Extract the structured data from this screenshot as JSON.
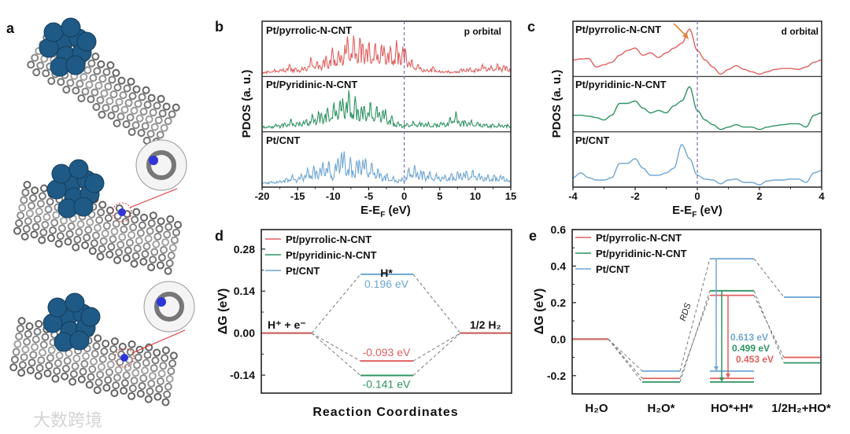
{
  "panels": {
    "a": "a",
    "b": "b",
    "c": "c",
    "d": "d",
    "e": "e"
  },
  "colors": {
    "pyrrolic": "#e0605e",
    "pyridinic": "#2f9462",
    "cnt": "#6ea6d2",
    "cluster": "#1f5a86",
    "tube": "#8a8a8a",
    "nitrogen": "#2f35d8"
  },
  "panel_a": {
    "structures": [
      "Pt/CNT",
      "Pt/pyridinic-N-CNT",
      "Pt/pyrrolic-N-CNT"
    ]
  },
  "watermark": "大数跨境",
  "chart_data": [
    {
      "id": "b",
      "type": "line",
      "title": "p orbital",
      "xlabel": {
        "main": "E-E",
        "sub": "F",
        "tail": " (eV)"
      },
      "ylabel": "PDOS (a. u.)",
      "xlim": [
        -20,
        15
      ],
      "xticks": [
        -20,
        -15,
        -10,
        -5,
        0,
        5,
        10,
        15
      ],
      "fermi_level": 0,
      "x": [
        -20,
        -19,
        -18,
        -17,
        -16,
        -15,
        -14,
        -13,
        -12,
        -11,
        -10,
        -9,
        -8,
        -7,
        -6,
        -5,
        -4,
        -3,
        -2,
        -1,
        0,
        1,
        2,
        3,
        4,
        5,
        6,
        7,
        8,
        9,
        10,
        11,
        12,
        13,
        14,
        15
      ],
      "series": [
        {
          "name": "Pt/pyrrolic-N-CNT",
          "color_key": "pyrrolic",
          "values": [
            0.02,
            0.05,
            0.08,
            0.1,
            0.2,
            0.1,
            0.15,
            0.35,
            0.25,
            0.4,
            0.55,
            0.5,
            0.85,
            0.8,
            0.85,
            0.7,
            0.65,
            0.7,
            0.6,
            0.7,
            0.65,
            0.3,
            0.2,
            0.08,
            0.15,
            0.05,
            0.05,
            0.03,
            0.1,
            0.12,
            0.1,
            0.2,
            0.15,
            0.2,
            0.2,
            0.12
          ]
        },
        {
          "name": "Pt/Pyridinic-N-CNT",
          "color_key": "pyridinic",
          "values": [
            0.05,
            0.05,
            0.1,
            0.12,
            0.2,
            0.15,
            0.2,
            0.3,
            0.4,
            0.45,
            0.55,
            0.7,
            0.85,
            0.7,
            0.55,
            0.6,
            0.5,
            0.5,
            0.3,
            0.15,
            0.1,
            0.15,
            0.15,
            0.15,
            0.1,
            0.15,
            0.15,
            0.4,
            0.2,
            0.2,
            0.15,
            0.12,
            0.1,
            0.1,
            0.1,
            0.08
          ]
        },
        {
          "name": "Pt/CNT",
          "color_key": "cnt",
          "values": [
            0.02,
            0.05,
            0.05,
            0.1,
            0.2,
            0.15,
            0.3,
            0.4,
            0.4,
            0.6,
            0.3,
            0.9,
            0.6,
            0.5,
            0.7,
            0.5,
            0.4,
            0.25,
            0.2,
            0.1,
            0.15,
            0.45,
            0.35,
            0.3,
            0.25,
            0.2,
            0.2,
            0.25,
            0.3,
            0.3,
            0.3,
            0.2,
            0.2,
            0.2,
            0.2,
            0.05
          ]
        }
      ]
    },
    {
      "id": "c",
      "type": "line",
      "title": "d orbital",
      "xlabel": {
        "main": "E-E",
        "sub": "F",
        "tail": " (eV)"
      },
      "ylabel": "PDOS (a. u.)",
      "xlim": [
        -4,
        4
      ],
      "xticks": [
        -4,
        -2,
        0,
        2,
        4
      ],
      "fermi_level": 0,
      "arrow_annotation_x": -0.25,
      "x": [
        -4,
        -3.75,
        -3.5,
        -3.25,
        -3,
        -2.75,
        -2.5,
        -2.25,
        -2,
        -1.75,
        -1.5,
        -1.25,
        -1,
        -0.75,
        -0.5,
        -0.25,
        0,
        0.25,
        0.5,
        0.75,
        1,
        1.25,
        1.5,
        1.75,
        2,
        2.25,
        2.5,
        2.75,
        3,
        3.25,
        3.5,
        3.75,
        4
      ],
      "series": [
        {
          "name": "Pt/pyrrolic-N-CNT",
          "color_key": "pyrrolic",
          "values": [
            0.3,
            0.32,
            0.33,
            0.15,
            0.2,
            0.25,
            0.4,
            0.5,
            0.55,
            0.4,
            0.45,
            0.35,
            0.45,
            0.55,
            0.65,
            0.95,
            0.5,
            0.3,
            0.15,
            0.0,
            0.1,
            0.18,
            0.1,
            0.05,
            0.0,
            0.05,
            0.1,
            0.12,
            0.12,
            0.1,
            0.15,
            0.25,
            0.3
          ]
        },
        {
          "name": "Pt/pyridinic-N-CNT",
          "color_key": "pyridinic",
          "values": [
            0.3,
            0.3,
            0.28,
            0.25,
            0.2,
            0.3,
            0.55,
            0.55,
            0.6,
            0.45,
            0.35,
            0.4,
            0.35,
            0.5,
            0.6,
            0.9,
            0.4,
            0.2,
            0.1,
            0.0,
            0.05,
            0.1,
            0.05,
            0.05,
            0.0,
            0.05,
            0.08,
            0.1,
            0.12,
            0.12,
            0.05,
            0.3,
            0.35
          ]
        },
        {
          "name": "Pt/CNT",
          "color_key": "cnt",
          "values": [
            0.15,
            0.25,
            0.15,
            0.1,
            0.1,
            0.15,
            0.45,
            0.45,
            0.55,
            0.35,
            0.2,
            0.2,
            0.25,
            0.35,
            0.85,
            0.55,
            0.2,
            0.12,
            0.1,
            0.02,
            0.1,
            0.12,
            0.05,
            0.05,
            0.0,
            0.08,
            0.1,
            0.1,
            0.12,
            0.12,
            0.05,
            0.25,
            0.3
          ]
        }
      ]
    },
    {
      "id": "d",
      "type": "line",
      "subtype": "energy-diagram",
      "xlabel": "Reaction Coordinates",
      "ylabel": "ΔG (eV)",
      "ylim": [
        -0.2,
        0.345
      ],
      "yticks": [
        0.28,
        0.14,
        0.0,
        -0.14
      ],
      "ytick_labels": [
        "0.28",
        "0.14",
        "0.00",
        "-0.14"
      ],
      "states": [
        "H⁺ + e⁻",
        "H*",
        "1/2 H₂"
      ],
      "series": [
        {
          "name": "Pt/pyrrolic-N-CNT",
          "color_key": "pyrrolic",
          "values": [
            0,
            -0.093,
            0
          ],
          "label": "-0.093 eV"
        },
        {
          "name": "Pt/pyridinic-N-CNT",
          "color_key": "pyridinic",
          "values": [
            0,
            -0.141,
            0
          ],
          "label": "-0.141 eV"
        },
        {
          "name": "Pt/CNT",
          "color_key": "cnt",
          "values": [
            0,
            0.196,
            0
          ],
          "label": "0.196 eV"
        }
      ],
      "legend": "top-left"
    },
    {
      "id": "e",
      "type": "line",
      "subtype": "energy-diagram",
      "xlabel": "",
      "ylabel": "ΔG (eV)",
      "ylim": [
        -0.3,
        0.6
      ],
      "yticks": [
        0.6,
        0.4,
        0.2,
        0.0,
        -0.2
      ],
      "ytick_labels": [
        "0.6",
        "0.4",
        "0.2",
        "0.0",
        "-0.2"
      ],
      "categories": [
        "H₂O",
        "H₂O*",
        "HO*+H*",
        "1/2H₂+HO*"
      ],
      "annotation": "RDS",
      "series": [
        {
          "name": "Pt/pyrrolic-N-CNT",
          "color_key": "pyrrolic",
          "values": [
            0,
            -0.215,
            0.24,
            -0.1
          ],
          "barrier": 0.453,
          "label": "0.453 eV"
        },
        {
          "name": "Pt/pyridinic-N-CNT",
          "color_key": "pyridinic",
          "values": [
            0,
            -0.235,
            0.265,
            -0.13
          ],
          "barrier": 0.499,
          "label": "0.499 eV"
        },
        {
          "name": "Pt/CNT",
          "color_key": "cnt",
          "values": [
            0,
            -0.175,
            0.44,
            0.23
          ],
          "barrier": 0.613,
          "label": "0.613 eV"
        }
      ],
      "legend": "top-left"
    }
  ]
}
